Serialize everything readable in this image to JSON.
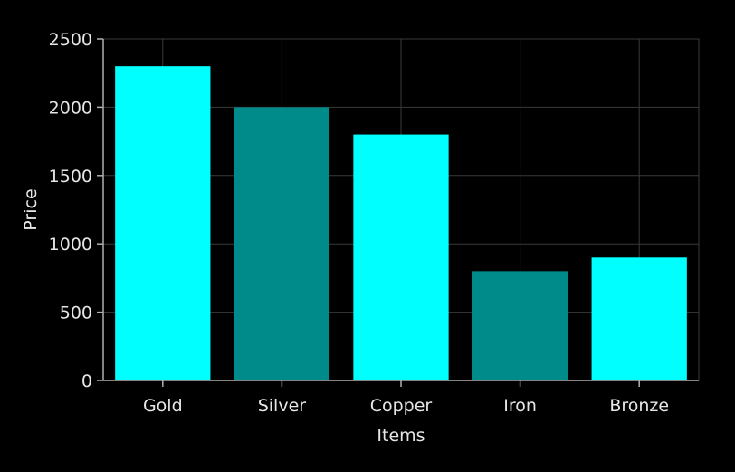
{
  "chart_data": {
    "type": "bar",
    "categories": [
      "Gold",
      "Silver",
      "Copper",
      "Iron",
      "Bronze"
    ],
    "values": [
      2300,
      2000,
      1800,
      800,
      900
    ],
    "bar_colors": [
      "#00ffff",
      "#008b8b",
      "#00ffff",
      "#008b8b",
      "#00ffff"
    ],
    "xlabel": "Items",
    "ylabel": "Price",
    "ylim": [
      0,
      2500
    ],
    "yticks": [
      0,
      500,
      1000,
      1500,
      2000,
      2500
    ],
    "grid": true,
    "background_color": "#000000",
    "grid_color": "#3a3a3a",
    "text_color": "#e6e6e6"
  }
}
